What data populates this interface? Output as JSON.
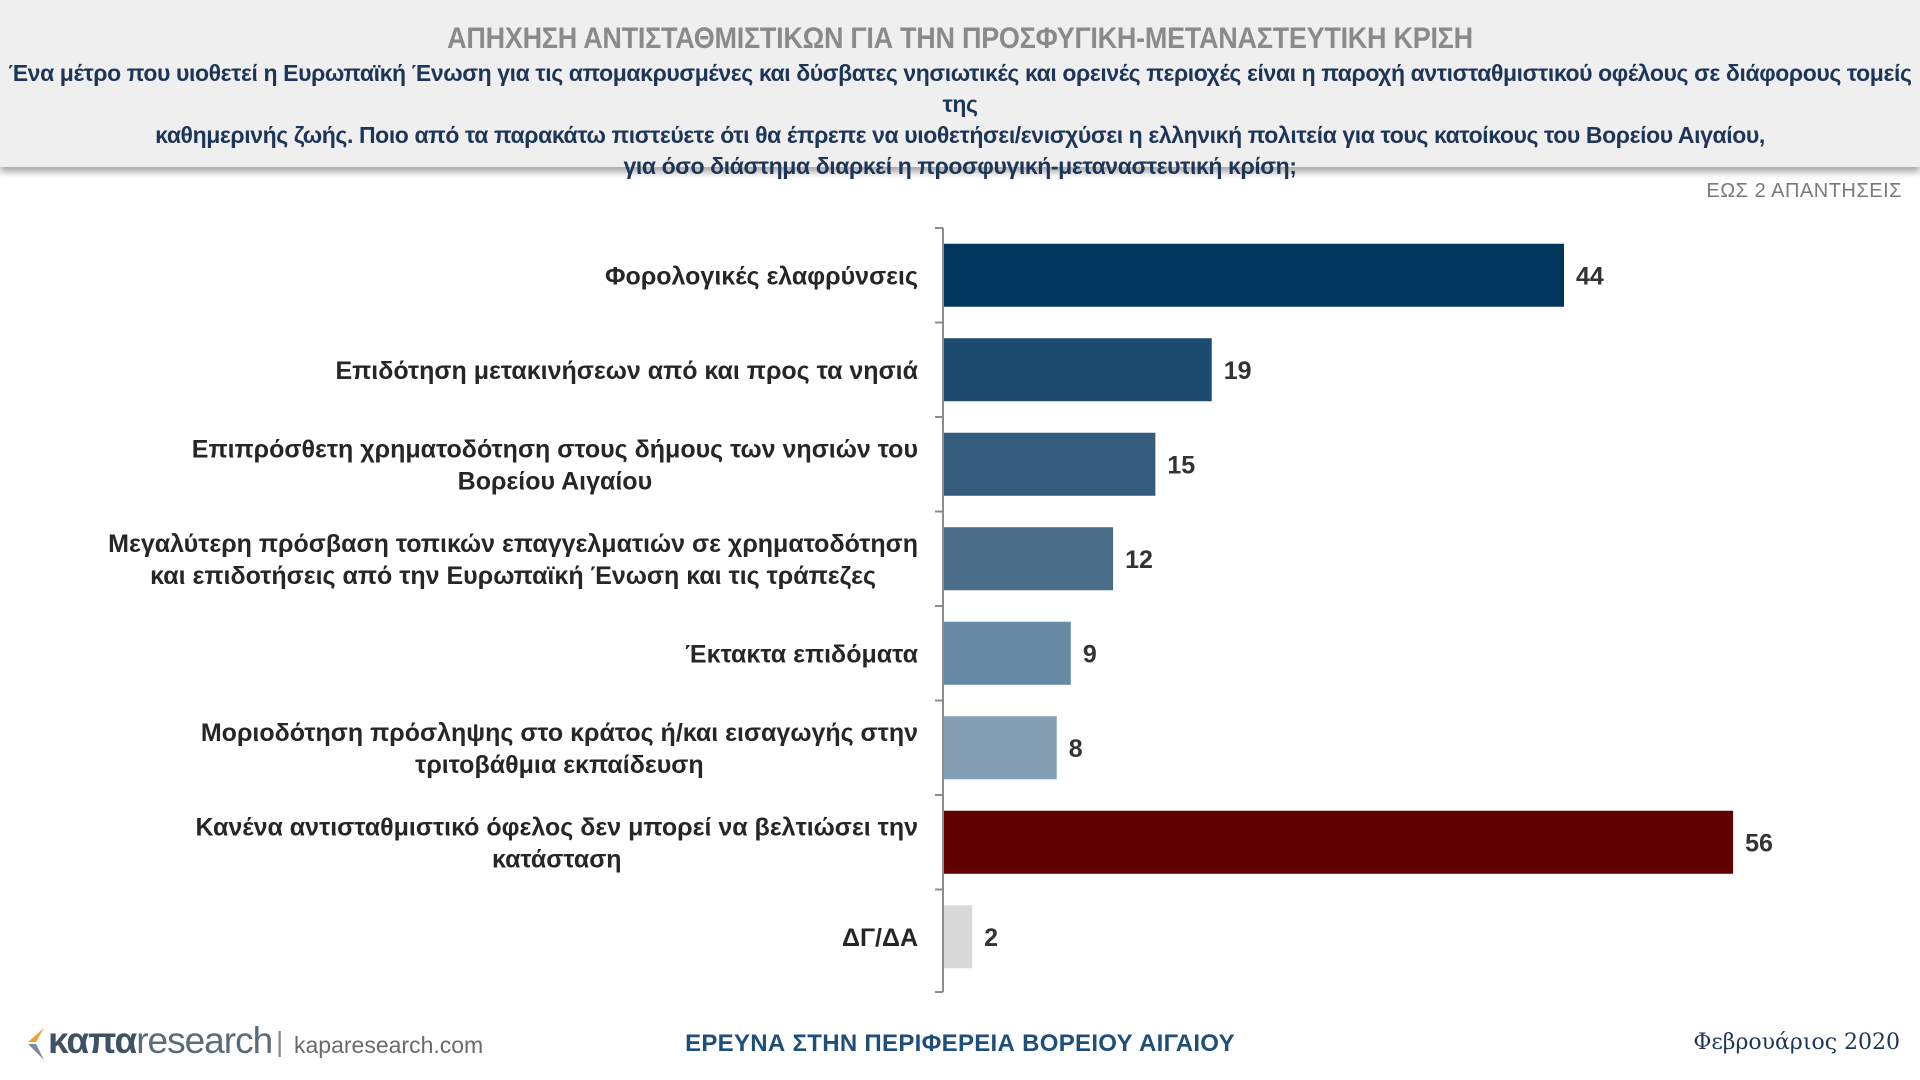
{
  "header": {
    "title": "ΑΠΗΧΗΣΗ ΑΝΤΙΣΤΑΘΜΙΣΤΙΚΩΝ ΓΙΑ ΤΗΝ ΠΡΟΣΦΥΓΙΚΗ-ΜΕΤΑΝΑΣΤΕΥΤΙΚΗ ΚΡΙΣΗ",
    "subtitle_lines": [
      "Ένα μέτρο που υιοθετεί η Ευρωπαϊκή Ένωση για τις απομακρυσμένες και δύσβατες νησιωτικές και ορεινές περιοχές είναι η παροχή αντισταθμιστικού οφέλους σε διάφορους τομείς της",
      "καθημερινής ζωής. Ποιο από τα παρακάτω πιστεύετε ότι θα έπρεπε να υιοθετήσει/ενισχύσει η ελληνική πολιτεία για τους κατοίκους του Βορείου Αιγαίου,",
      "για όσο διάστημα διαρκεί η προσφυγική-μεταναστευτική κρίση;"
    ]
  },
  "note": "ΕΩΣ 2 ΑΠΑΝΤΗΣΕΙΣ",
  "chart_data": {
    "type": "bar",
    "orientation": "horizontal",
    "categories": [
      [
        "Φορολογικές ελαφρύνσεις"
      ],
      [
        "Επιδότηση μετακινήσεων από και προς τα νησιά"
      ],
      [
        "Επιπρόσθετη χρηματοδότηση στους δήμους των νησιών του",
        "Βορείου Αιγαίου"
      ],
      [
        "Μεγαλύτερη πρόσβαση τοπικών επαγγελματιών σε χρηματοδότηση",
        "και επιδοτήσεις από την Ευρωπαϊκή Ένωση και τις τράπεζες"
      ],
      [
        "Έκτακτα επιδόματα"
      ],
      [
        "Μοριοδότηση πρόσληψης στο κράτος ή/και εισαγωγής στην",
        "τριτοβάθμια εκπαίδευση"
      ],
      [
        "Κανένα αντισταθμιστικό όφελος δεν μπορεί να βελτιώσει την",
        "κατάσταση"
      ],
      [
        "ΔΓ/ΔΑ"
      ]
    ],
    "values": [
      44,
      19,
      15,
      12,
      9,
      8,
      56,
      2
    ],
    "colors": [
      "#00355c",
      "#1d4a6f",
      "#335c7d",
      "#4a6d89",
      "#678aa4",
      "#849fb4",
      "#600000",
      "#d9d9d9"
    ],
    "xlim": [
      0,
      60
    ],
    "grid": false,
    "legend": "none"
  },
  "footer": {
    "logo_brand": "καπα",
    "logo_word": "research",
    "logo_separator": "|",
    "logo_url": "kaparesearch.com",
    "center": "ΕΡΕΥΝΑ ΣΤΗΝ ΠΕΡΙΦΕΡΕΙΑ ΒΟΡΕΙΟΥ ΑΙΓΑΙΟΥ",
    "date": "Φεβρουάριος 2020"
  }
}
